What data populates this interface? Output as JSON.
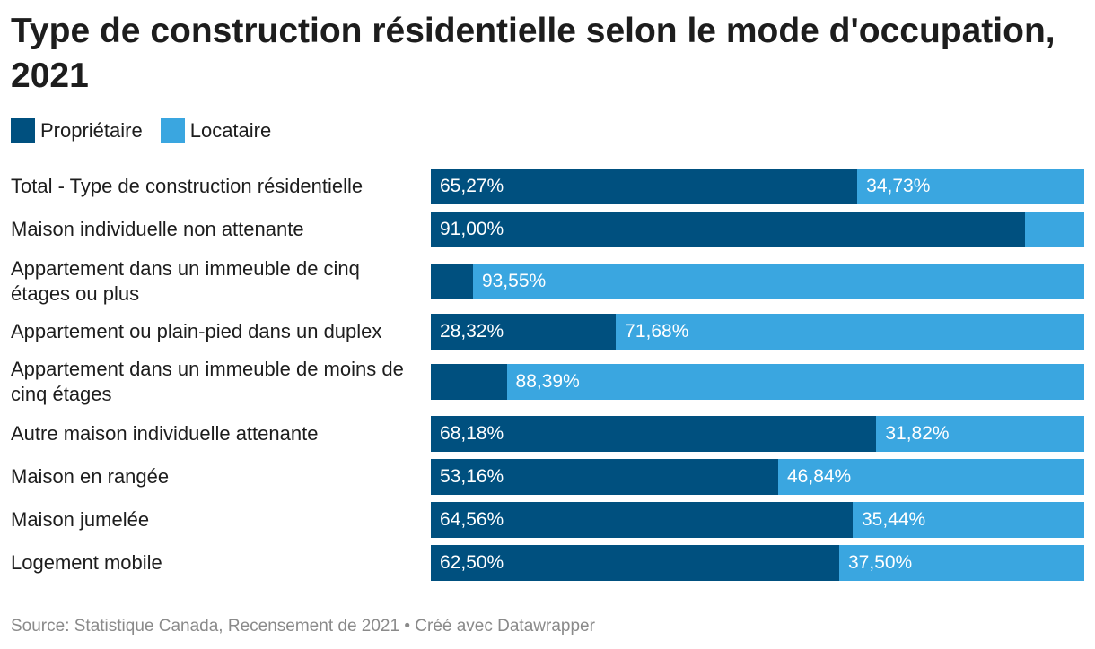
{
  "title": "Type de construction résidentielle selon le mode d'occupation, 2021",
  "source": "Source: Statistique Canada, Recensement de 2021 • Créé avec Datawrapper",
  "colors": {
    "owner": "#00507f",
    "renter": "#3aa6e0"
  },
  "chart_data": {
    "type": "bar",
    "orientation": "horizontal",
    "stacked": true,
    "legend_position": "top-left",
    "series": [
      {
        "name": "Propriétaire",
        "color": "#00507f",
        "values": [
          65.27,
          91.0,
          6.45,
          28.32,
          11.61,
          68.18,
          53.16,
          64.56,
          62.5
        ],
        "labels": [
          "65,27%",
          "91,00%",
          "",
          "28,32%",
          "",
          "68,18%",
          "53,16%",
          "64,56%",
          "62,50%"
        ]
      },
      {
        "name": "Locataire",
        "color": "#3aa6e0",
        "values": [
          34.73,
          9.0,
          93.55,
          71.68,
          88.39,
          31.82,
          46.84,
          35.44,
          37.5
        ],
        "labels": [
          "34,73%",
          "",
          "93,55%",
          "71,68%",
          "88,39%",
          "31,82%",
          "46,84%",
          "35,44%",
          "37,50%"
        ]
      }
    ],
    "categories": [
      "Total - Type de construction résidentielle",
      "Maison individuelle non attenante",
      "Appartement dans un immeuble de cinq étages ou plus",
      "Appartement ou plain-pied dans un duplex",
      "Appartement dans un immeuble de moins de cinq étages",
      "Autre maison individuelle attenante",
      "Maison en rangée",
      "Maison jumelée",
      "Logement mobile"
    ]
  }
}
